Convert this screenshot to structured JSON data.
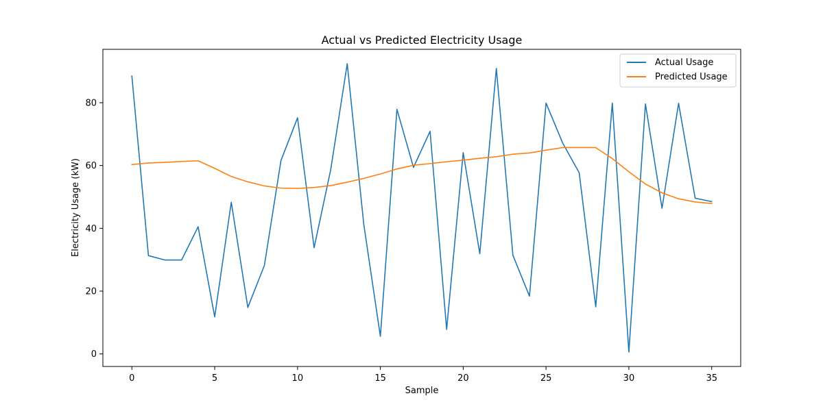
{
  "chart_data": {
    "type": "line",
    "title": "Actual vs Predicted Electricity Usage",
    "xlabel": "Sample",
    "ylabel": "Electricity Usage (kW)",
    "xlim": [
      -1.75,
      36.75
    ],
    "ylim": [
      -4,
      97
    ],
    "xticks": [
      0,
      5,
      10,
      15,
      20,
      25,
      30,
      35
    ],
    "yticks": [
      0,
      20,
      40,
      60,
      80
    ],
    "grid": false,
    "legend_position": "top-right",
    "x": [
      0,
      1,
      2,
      3,
      4,
      5,
      6,
      7,
      8,
      9,
      10,
      11,
      12,
      13,
      14,
      15,
      16,
      17,
      18,
      19,
      20,
      21,
      22,
      23,
      24,
      25,
      26,
      27,
      28,
      29,
      30,
      31,
      32,
      33,
      34,
      35
    ],
    "series": [
      {
        "name": "Actual Usage",
        "color": "#1f77b4",
        "values": [
          88.5,
          31.3,
          29.9,
          29.9,
          40.5,
          11.8,
          48.3,
          14.8,
          28.2,
          61.6,
          75.2,
          33.8,
          58.6,
          92.4,
          41.2,
          5.6,
          77.9,
          59.4,
          70.9,
          7.8,
          64.1,
          31.9,
          90.9,
          31.4,
          18.4,
          79.9,
          67.2,
          57.7,
          15.0,
          79.9,
          0.6,
          79.6,
          46.4,
          79.8,
          49.6,
          48.5
        ]
      },
      {
        "name": "Predicted Usage",
        "color": "#ff7f0e",
        "values": [
          60.3,
          60.8,
          61.0,
          61.3,
          61.5,
          59.1,
          56.5,
          54.8,
          53.5,
          52.8,
          52.7,
          53.0,
          53.6,
          54.7,
          55.9,
          57.3,
          58.9,
          60.1,
          60.6,
          61.2,
          61.7,
          62.3,
          62.8,
          63.6,
          64.0,
          64.9,
          65.7,
          65.7,
          65.7,
          62.2,
          58.0,
          54.1,
          51.3,
          49.4,
          48.4,
          47.9
        ]
      }
    ]
  }
}
